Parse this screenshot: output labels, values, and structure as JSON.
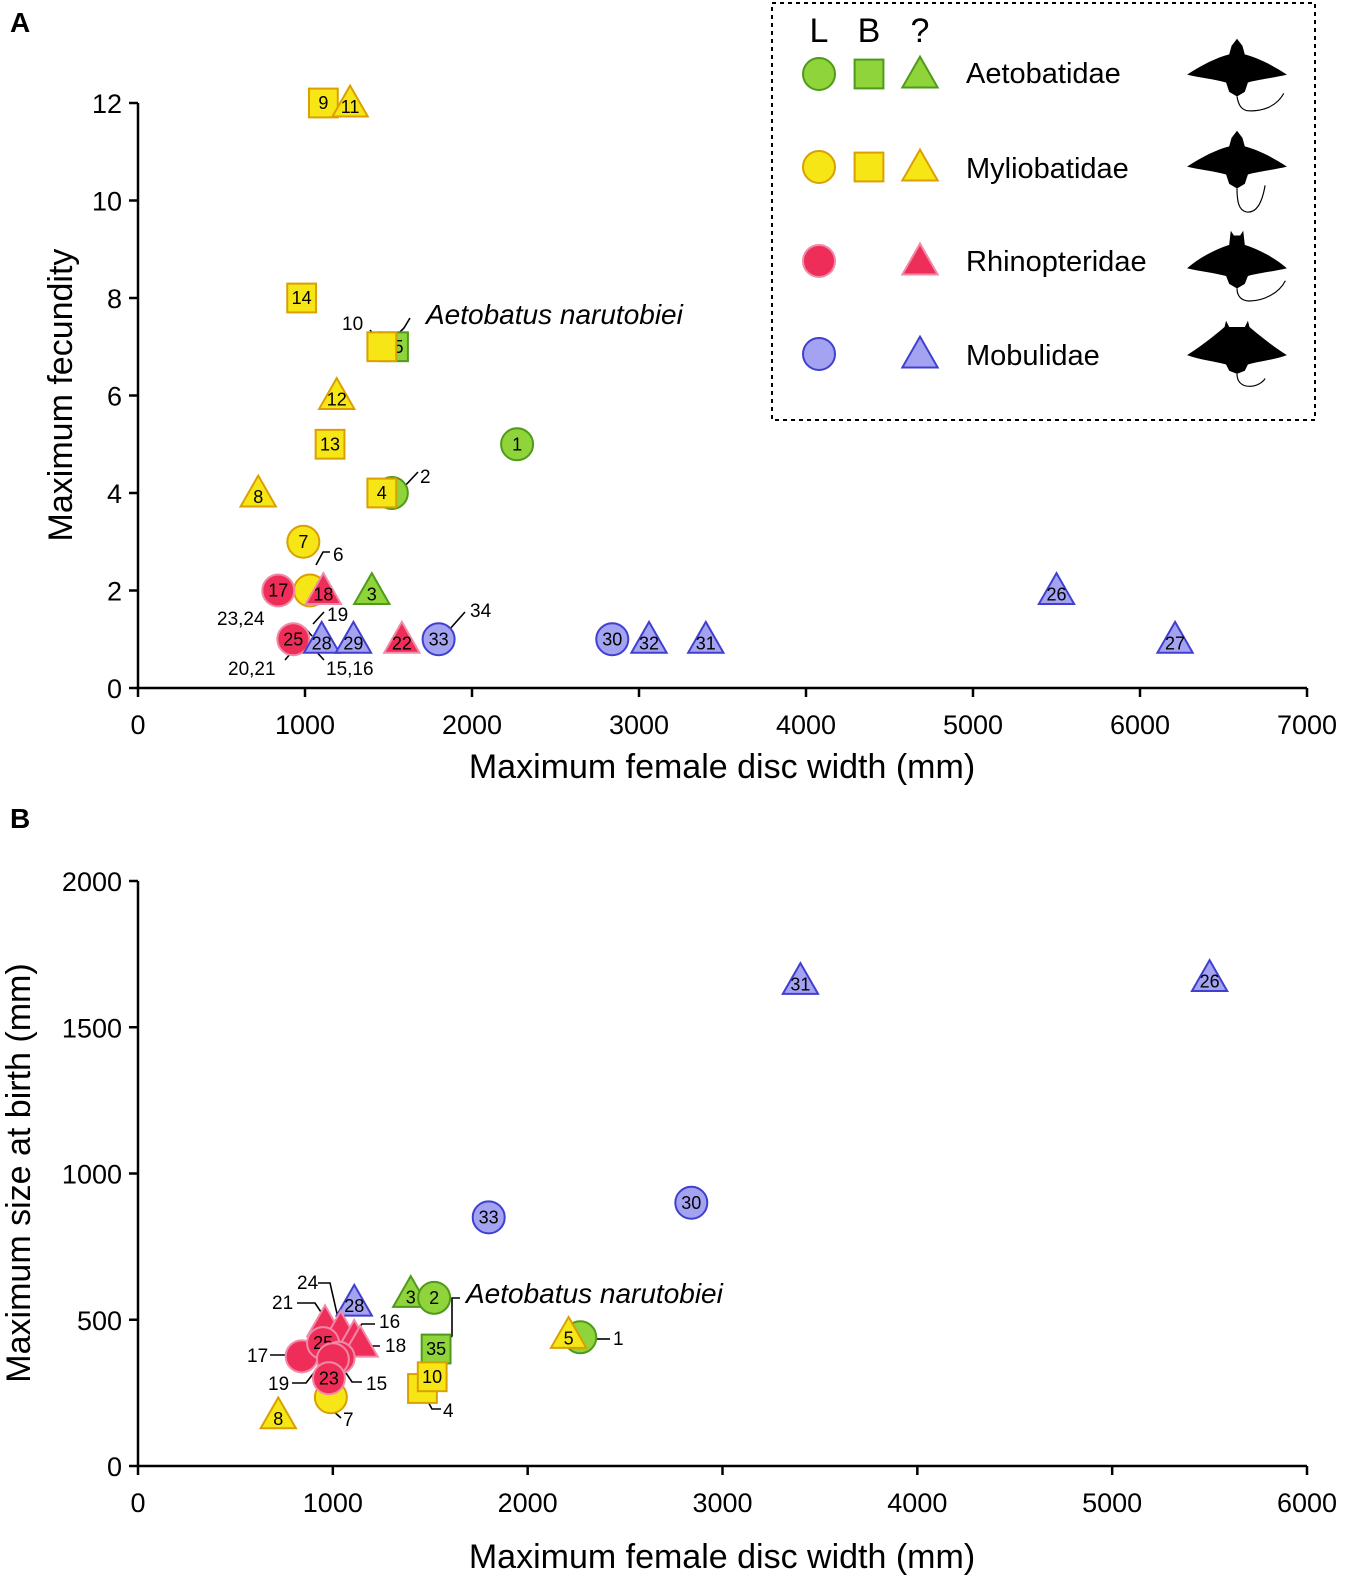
{
  "colors": {
    "Aetobatidae": {
      "fill": "#8fd43a",
      "stroke": "#4f9a1a"
    },
    "Myliobatidae": {
      "fill": "#f7e616",
      "stroke": "#d9a000"
    },
    "Rhinopteridae": {
      "fill": "#ee2e58",
      "stroke": "#f08aa8"
    },
    "Mobulidae": {
      "fill": "#a3a3f2",
      "stroke": "#3f3fd0"
    }
  },
  "legend": {
    "headers": [
      "L",
      "B",
      "?"
    ],
    "families": [
      {
        "name": "Aetobatidae",
        "symbols": [
          "circle",
          "square",
          "triangle"
        ]
      },
      {
        "name": "Myliobatidae",
        "symbols": [
          "circle",
          "square",
          "triangle"
        ]
      },
      {
        "name": "Rhinopteridae",
        "symbols": [
          "circle",
          "triangle"
        ]
      },
      {
        "name": "Mobulidae",
        "symbols": [
          "circle",
          "triangle"
        ]
      }
    ],
    "silhouettes": [
      "ray-silhouette-icon",
      "ray-silhouette-icon",
      "ray-silhouette-icon",
      "ray-silhouette-icon"
    ]
  },
  "chart_data": [
    {
      "panel": "A",
      "type": "scatter",
      "xlabel": "Maximum female disc width (mm)",
      "ylabel": "Maximum fecundity",
      "xlim": [
        0,
        7000
      ],
      "ylim": [
        0,
        12
      ],
      "xticks": [
        0,
        1000,
        2000,
        3000,
        4000,
        5000,
        6000,
        7000
      ],
      "yticks": [
        0,
        2,
        4,
        6,
        8,
        10,
        12
      ],
      "annotation": "Aetobatus narutobiei",
      "points": [
        {
          "id": "1",
          "x": 2270,
          "y": 5,
          "family": "Aetobatidae",
          "shape": "circle",
          "label": "1"
        },
        {
          "id": "2",
          "x": 1520,
          "y": 4,
          "family": "Aetobatidae",
          "shape": "circle",
          "label": ""
        },
        {
          "id": "3",
          "x": 1400,
          "y": 2,
          "family": "Aetobatidae",
          "shape": "triangle",
          "label": "3"
        },
        {
          "id": "35",
          "x": 1530,
          "y": 7,
          "family": "Aetobatidae",
          "shape": "square",
          "label": "35"
        },
        {
          "id": "10",
          "x": 1460,
          "y": 7,
          "family": "Myliobatidae",
          "shape": "square",
          "label": ""
        },
        {
          "id": "4",
          "x": 1460,
          "y": 4,
          "family": "Myliobatidae",
          "shape": "square",
          "label": "4"
        },
        {
          "id": "7",
          "x": 990,
          "y": 3,
          "family": "Myliobatidae",
          "shape": "circle",
          "label": "7"
        },
        {
          "id": "6",
          "x": 1030,
          "y": 2,
          "family": "Myliobatidae",
          "shape": "circle",
          "label": ""
        },
        {
          "id": "8",
          "x": 720,
          "y": 4,
          "family": "Myliobatidae",
          "shape": "triangle",
          "label": "8"
        },
        {
          "id": "9",
          "x": 1110,
          "y": 12,
          "family": "Myliobatidae",
          "shape": "square",
          "label": "9"
        },
        {
          "id": "11",
          "x": 1270,
          "y": 12,
          "family": "Myliobatidae",
          "shape": "triangle",
          "label": "11"
        },
        {
          "id": "12",
          "x": 1190,
          "y": 6,
          "family": "Myliobatidae",
          "shape": "triangle",
          "label": "12"
        },
        {
          "id": "13",
          "x": 1150,
          "y": 5,
          "family": "Myliobatidae",
          "shape": "square",
          "label": "13"
        },
        {
          "id": "14",
          "x": 980,
          "y": 8,
          "family": "Myliobatidae",
          "shape": "square",
          "label": "14"
        },
        {
          "id": "17",
          "x": 840,
          "y": 2,
          "family": "Rhinopteridae",
          "shape": "circle",
          "label": "17"
        },
        {
          "id": "18",
          "x": 1110,
          "y": 2,
          "family": "Rhinopteridae",
          "shape": "triangle",
          "label": "18"
        },
        {
          "id": "22",
          "x": 1580,
          "y": 1,
          "family": "Rhinopteridae",
          "shape": "triangle",
          "label": "22"
        },
        {
          "id": "25",
          "x": 930,
          "y": 1,
          "family": "Rhinopteridae",
          "shape": "circle",
          "label": "25"
        },
        {
          "id": "26",
          "x": 5500,
          "y": 2,
          "family": "Mobulidae",
          "shape": "triangle",
          "label": "26"
        },
        {
          "id": "27",
          "x": 6210,
          "y": 1,
          "family": "Mobulidae",
          "shape": "triangle",
          "label": "27"
        },
        {
          "id": "28",
          "x": 1100,
          "y": 1,
          "family": "Mobulidae",
          "shape": "triangle",
          "label": "28"
        },
        {
          "id": "29",
          "x": 1290,
          "y": 1,
          "family": "Mobulidae",
          "shape": "triangle",
          "label": "29"
        },
        {
          "id": "30",
          "x": 2840,
          "y": 1,
          "family": "Mobulidae",
          "shape": "circle",
          "label": "30"
        },
        {
          "id": "31",
          "x": 3400,
          "y": 1,
          "family": "Mobulidae",
          "shape": "triangle",
          "label": "31"
        },
        {
          "id": "32",
          "x": 3060,
          "y": 1,
          "family": "Mobulidae",
          "shape": "triangle",
          "label": "32"
        },
        {
          "id": "33",
          "x": 1800,
          "y": 1,
          "family": "Mobulidae",
          "shape": "circle",
          "label": "33"
        }
      ],
      "callouts": [
        "10",
        "2",
        "6",
        "19",
        "23,24",
        "20,21",
        "15,16",
        "34"
      ]
    },
    {
      "panel": "B",
      "type": "scatter",
      "xlabel": "Maximum female disc width (mm)",
      "ylabel": "Maximum size at birth (mm)",
      "xlim": [
        0,
        6000
      ],
      "ylim": [
        0,
        2000
      ],
      "xticks": [
        0,
        1000,
        2000,
        3000,
        4000,
        5000,
        6000
      ],
      "yticks": [
        0,
        500,
        1000,
        1500,
        2000
      ],
      "annotation": "Aetobatus narutobiei",
      "points": [
        {
          "id": "31",
          "x": 3400,
          "y": 1660,
          "family": "Mobulidae",
          "shape": "triangle",
          "label": "31"
        },
        {
          "id": "26",
          "x": 5500,
          "y": 1670,
          "family": "Mobulidae",
          "shape": "triangle",
          "label": "26"
        },
        {
          "id": "30",
          "x": 2840,
          "y": 900,
          "family": "Mobulidae",
          "shape": "circle",
          "label": "30"
        },
        {
          "id": "33",
          "x": 1800,
          "y": 850,
          "family": "Mobulidae",
          "shape": "circle",
          "label": "33"
        },
        {
          "id": "28",
          "x": 1110,
          "y": 560,
          "family": "Mobulidae",
          "shape": "triangle",
          "label": "28"
        },
        {
          "id": "3",
          "x": 1400,
          "y": 590,
          "family": "Aetobatidae",
          "shape": "triangle",
          "label": "3"
        },
        {
          "id": "2",
          "x": 1520,
          "y": 575,
          "family": "Aetobatidae",
          "shape": "circle",
          "label": "2"
        },
        {
          "id": "1",
          "x": 2270,
          "y": 440,
          "family": "Aetobatidae",
          "shape": "circle",
          "label": ""
        },
        {
          "id": "5",
          "x": 2210,
          "y": 450,
          "family": "Myliobatidae",
          "shape": "triangle",
          "label": "5"
        },
        {
          "id": "35",
          "x": 1530,
          "y": 400,
          "family": "Aetobatidae",
          "shape": "square",
          "label": "35"
        },
        {
          "id": "4",
          "x": 1460,
          "y": 265,
          "family": "Myliobatidae",
          "shape": "square",
          "label": ""
        },
        {
          "id": "10",
          "x": 1510,
          "y": 305,
          "family": "Myliobatidae",
          "shape": "square",
          "label": "10"
        },
        {
          "id": "7",
          "x": 990,
          "y": 235,
          "family": "Myliobatidae",
          "shape": "circle",
          "label": ""
        },
        {
          "id": "8",
          "x": 720,
          "y": 175,
          "family": "Myliobatidae",
          "shape": "triangle",
          "label": "8"
        },
        {
          "id": "24",
          "x": 960,
          "y": 490,
          "family": "Rhinopteridae",
          "shape": "triangle",
          "label": ""
        },
        {
          "id": "21",
          "x": 1040,
          "y": 470,
          "family": "Rhinopteridae",
          "shape": "triangle",
          "label": ""
        },
        {
          "id": "16",
          "x": 1110,
          "y": 440,
          "family": "Rhinopteridae",
          "shape": "triangle",
          "label": ""
        },
        {
          "id": "18",
          "x": 1140,
          "y": 420,
          "family": "Rhinopteridae",
          "shape": "triangle",
          "label": ""
        },
        {
          "id": "17",
          "x": 840,
          "y": 375,
          "family": "Rhinopteridae",
          "shape": "circle",
          "label": ""
        },
        {
          "id": "25",
          "x": 950,
          "y": 420,
          "family": "Rhinopteridae",
          "shape": "circle",
          "label": "25"
        },
        {
          "id": "15",
          "x": 1030,
          "y": 370,
          "family": "Rhinopteridae",
          "shape": "circle",
          "label": ""
        },
        {
          "id": "19",
          "x": 1000,
          "y": 365,
          "family": "Rhinopteridae",
          "shape": "circle",
          "label": ""
        },
        {
          "id": "23",
          "x": 980,
          "y": 300,
          "family": "Rhinopteridae",
          "shape": "circle",
          "label": "23"
        }
      ],
      "callouts": [
        "24",
        "21",
        "16",
        "18",
        "17",
        "19",
        "15",
        "7",
        "4",
        "1"
      ]
    }
  ]
}
